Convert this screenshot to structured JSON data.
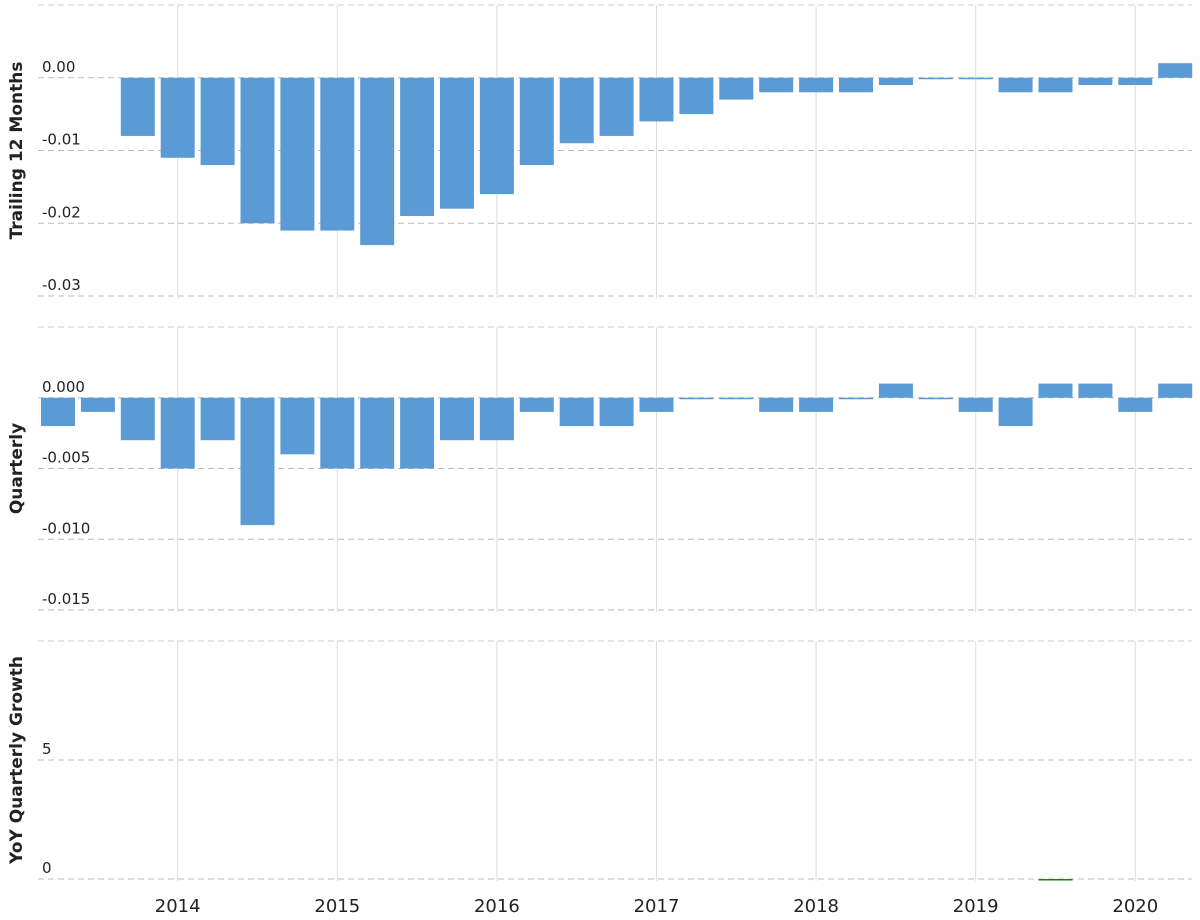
{
  "chart_data": [
    {
      "type": "bar",
      "y_label": "Trailing 12 Months",
      "color": "#5b9bd5",
      "categories": [
        null,
        null,
        null,
        "2014",
        null,
        null,
        null,
        "2015",
        null,
        null,
        null,
        "2016",
        null,
        null,
        null,
        "2017",
        null,
        null,
        null,
        "2018",
        null,
        null,
        null,
        "2019",
        null,
        null,
        null,
        "2020",
        null
      ],
      "values": [
        null,
        null,
        -0.008,
        -0.011,
        -0.012,
        -0.02,
        -0.021,
        -0.021,
        -0.023,
        -0.019,
        -0.018,
        -0.016,
        -0.012,
        -0.009,
        -0.008,
        -0.006,
        -0.005,
        -0.003,
        -0.002,
        -0.002,
        -0.002,
        -0.001,
        0,
        0,
        -0.002,
        -0.002,
        -0.001,
        -0.001,
        0.002
      ],
      "ylim": [
        -0.03,
        0.01
      ],
      "yticks": [
        -0.03,
        -0.02,
        -0.01,
        {
          "value": 0,
          "label": "0.00"
        }
      ],
      "grid": true
    },
    {
      "type": "bar",
      "y_label": "Quarterly",
      "color": "#5b9bd5",
      "categories": [
        null,
        null,
        null,
        "2014",
        null,
        null,
        null,
        "2015",
        null,
        null,
        null,
        "2016",
        null,
        null,
        null,
        "2017",
        null,
        null,
        null,
        "2018",
        null,
        null,
        null,
        "2019",
        null,
        null,
        null,
        "2020",
        null
      ],
      "values": [
        -0.002,
        -0.001,
        -0.003,
        -0.005,
        -0.003,
        -0.009,
        -0.004,
        -0.005,
        -0.005,
        -0.005,
        -0.003,
        -0.003,
        -0.001,
        -0.002,
        -0.002,
        -0.001,
        0,
        0,
        -0.001,
        -0.001,
        0,
        0.001,
        0,
        -0.001,
        -0.002,
        0.001,
        0.001,
        -0.001,
        0.001
      ],
      "ylim": [
        -0.015,
        0.005
      ],
      "yticks": [
        -0.015,
        {
          "value": -0.01,
          "label": "-0.010"
        },
        -0.005,
        {
          "value": 0,
          "label": "0.000"
        }
      ],
      "grid": true
    },
    {
      "type": "bar",
      "y_label": "YoY Quarterly Growth",
      "color": "#1e7b1e",
      "categories": [
        null,
        null,
        null,
        "2014",
        null,
        null,
        null,
        "2015",
        null,
        null,
        null,
        "2016",
        null,
        null,
        null,
        "2017",
        null,
        null,
        null,
        "2018",
        null,
        null,
        null,
        "2019",
        null,
        null,
        null,
        "2020",
        null
      ],
      "values": [
        null,
        null,
        null,
        null,
        null,
        null,
        null,
        null,
        null,
        null,
        null,
        null,
        null,
        null,
        null,
        null,
        null,
        null,
        null,
        null,
        null,
        null,
        null,
        null,
        null,
        0,
        null,
        null,
        null
      ],
      "ylim": [
        0,
        10
      ],
      "yticks": [
        0,
        5
      ],
      "grid": true
    }
  ]
}
